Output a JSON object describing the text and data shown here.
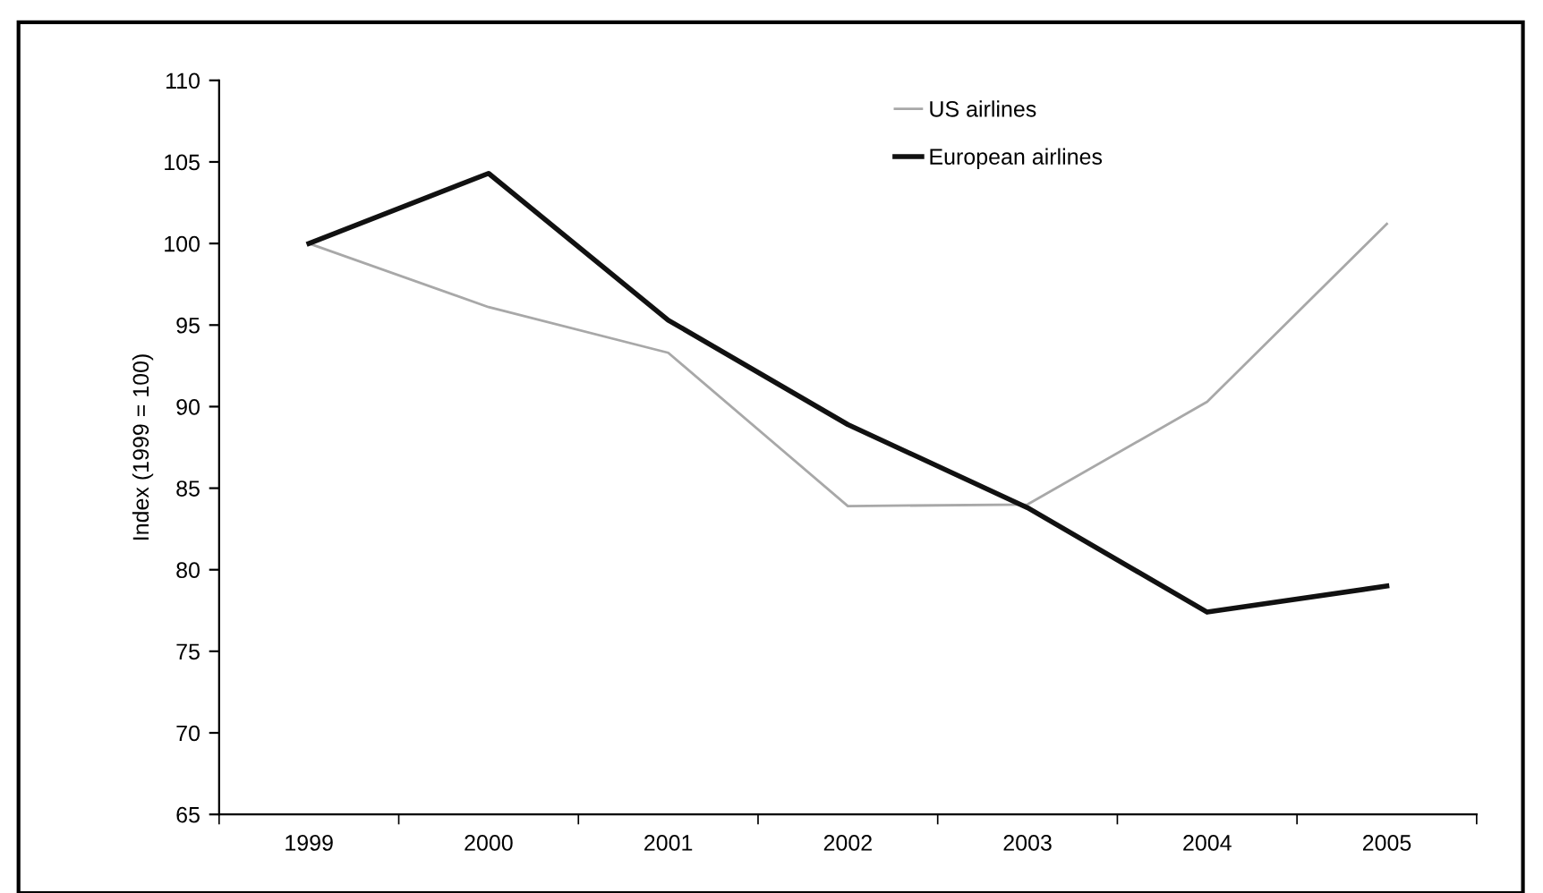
{
  "chart_data": {
    "type": "line",
    "ylabel": "Index (1999 = 100)",
    "categories": [
      "1999",
      "2000",
      "2001",
      "2002",
      "2003",
      "2004",
      "2005"
    ],
    "series": [
      {
        "name": "US airlines",
        "color": "#a8a8a8",
        "values": [
          100,
          96.1,
          93.3,
          83.9,
          84.0,
          90.3,
          101.2
        ]
      },
      {
        "name": "European airlines",
        "color": "#111111",
        "values": [
          100,
          104.3,
          95.3,
          88.9,
          83.8,
          77.4,
          79.0
        ]
      }
    ],
    "ylim": [
      65,
      110
    ],
    "yticks": [
      65,
      70,
      75,
      80,
      85,
      90,
      95,
      100,
      105,
      110
    ],
    "grid": false,
    "legend": "top",
    "line_style": "solid",
    "marker": "none"
  }
}
